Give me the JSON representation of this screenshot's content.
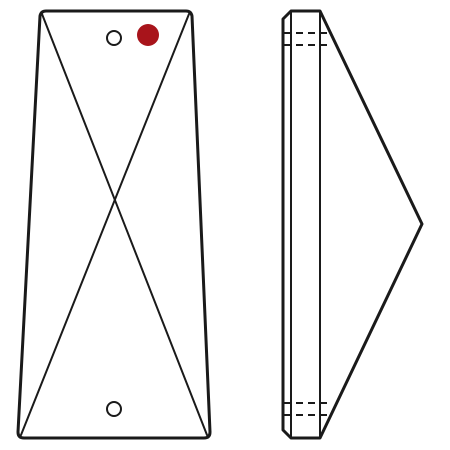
{
  "views": {
    "front": {
      "name": "front-view",
      "holes": 2,
      "marker": "red-dot-marker"
    },
    "side": {
      "name": "side-view",
      "hidden_hole_lines": 2
    }
  },
  "icons": {
    "mounting_hole": "circle-outline",
    "marker": "filled-circle"
  },
  "colors": {
    "background": "#ffffff",
    "line": "#1a1a1a",
    "marker": "#a8141b"
  }
}
